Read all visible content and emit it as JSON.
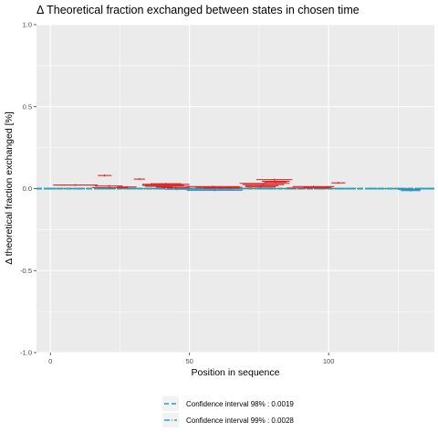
{
  "chart_data": {
    "type": "scatter",
    "title": "Δ Theoretical fraction exchanged between states in chosen time",
    "xlabel": "Position in sequence",
    "ylabel": "Δ theoretical fraction exchanged [%]",
    "xlim": [
      -5,
      138
    ],
    "ylim": [
      -1.0,
      1.0
    ],
    "x_ticks": [
      0,
      50,
      100
    ],
    "x_tick_labels": [
      "0",
      "50",
      "100"
    ],
    "y_ticks": [
      -1.0,
      -0.5,
      0.0,
      0.5,
      1.0
    ],
    "y_tick_labels": [
      "-1.0",
      "-0.5",
      "0.0",
      "0.5",
      "1.0"
    ],
    "grid": true,
    "legend_position": "bottom",
    "colors": {
      "panel": "#ebebeb",
      "grid": "#ffffff",
      "positive": "#d62728",
      "negative": "#2b8cbe",
      "ci98": "#1f9bde",
      "ci99": "#2aa3b8",
      "zero_line": "#5a8a3c"
    },
    "confidence_intervals": [
      {
        "name": "Confidence interval 98% : 0.0019",
        "value": 0.0019,
        "dash": "dashed"
      },
      {
        "name": "Confidence interval 99% : 0.0028",
        "value": 0.0028,
        "dash": "dotdash"
      }
    ],
    "segments": [
      {
        "start": 1,
        "end": 17,
        "value": 0.022
      },
      {
        "start": 16,
        "end": 26,
        "value": 0.016
      },
      {
        "start": 15,
        "end": 28,
        "value": 0.006
      },
      {
        "start": 17,
        "end": 22,
        "value": 0.08
      },
      {
        "start": 24,
        "end": 31,
        "value": 0.01
      },
      {
        "start": 30,
        "end": 34,
        "value": 0.058
      },
      {
        "start": 33,
        "end": 50,
        "value": 0.026
      },
      {
        "start": 33,
        "end": 48,
        "value": 0.02
      },
      {
        "start": 34,
        "end": 50,
        "value": 0.014
      },
      {
        "start": 36,
        "end": 47,
        "value": 0.03
      },
      {
        "start": 38,
        "end": 44,
        "value": 0.009
      },
      {
        "start": 40,
        "end": 50,
        "value": 0.005
      },
      {
        "start": 41,
        "end": 50,
        "value": -0.004
      },
      {
        "start": 49,
        "end": 68,
        "value": 0.012
      },
      {
        "start": 49,
        "end": 69,
        "value": -0.01
      },
      {
        "start": 50,
        "end": 66,
        "value": -0.003
      },
      {
        "start": 52,
        "end": 69,
        "value": 0.008
      },
      {
        "start": 55,
        "end": 68,
        "value": 0.004
      },
      {
        "start": 68,
        "end": 86,
        "value": 0.032
      },
      {
        "start": 69,
        "end": 84,
        "value": 0.025
      },
      {
        "start": 70,
        "end": 82,
        "value": 0.018
      },
      {
        "start": 70,
        "end": 81,
        "value": 0.01
      },
      {
        "start": 74,
        "end": 87,
        "value": 0.055
      },
      {
        "start": 76,
        "end": 86,
        "value": 0.045
      },
      {
        "start": 77,
        "end": 85,
        "value": 0.04
      },
      {
        "start": 85,
        "end": 100,
        "value": 0.004
      },
      {
        "start": 87,
        "end": 102,
        "value": 0.012
      },
      {
        "start": 91,
        "end": 101,
        "value": 0.008
      },
      {
        "start": 101,
        "end": 106,
        "value": 0.035
      },
      {
        "start": 125,
        "end": 133,
        "value": -0.005
      },
      {
        "start": 126,
        "end": 133,
        "value": -0.012
      }
    ]
  }
}
